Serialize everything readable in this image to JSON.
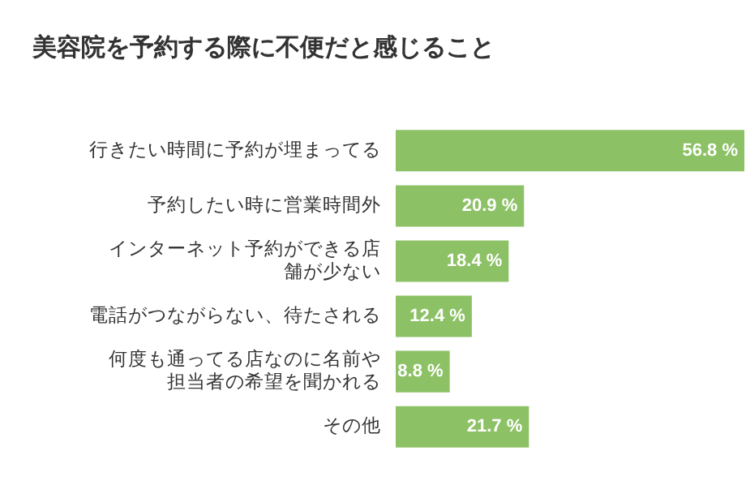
{
  "chart_data": {
    "type": "bar",
    "orientation": "horizontal",
    "title": "美容院を予約する際に不便だと感じること",
    "categories": [
      "行きたい時間に予約が埋まってる",
      "予約したい時に営業時間外",
      "インターネット予約ができる店舗が少ない",
      "電話がつながらない、待たされる",
      "何度も通ってる店なのに名前や担当者の希望を聞かれる",
      "その他"
    ],
    "values": [
      56.8,
      20.9,
      18.4,
      12.4,
      8.8,
      21.7
    ],
    "value_labels": [
      "56.8 %",
      "20.9 %",
      "18.4 %",
      "12.4 %",
      "8.8 %",
      "21.7 %"
    ],
    "color": "#8cc165",
    "tick_labels": "y"
  }
}
